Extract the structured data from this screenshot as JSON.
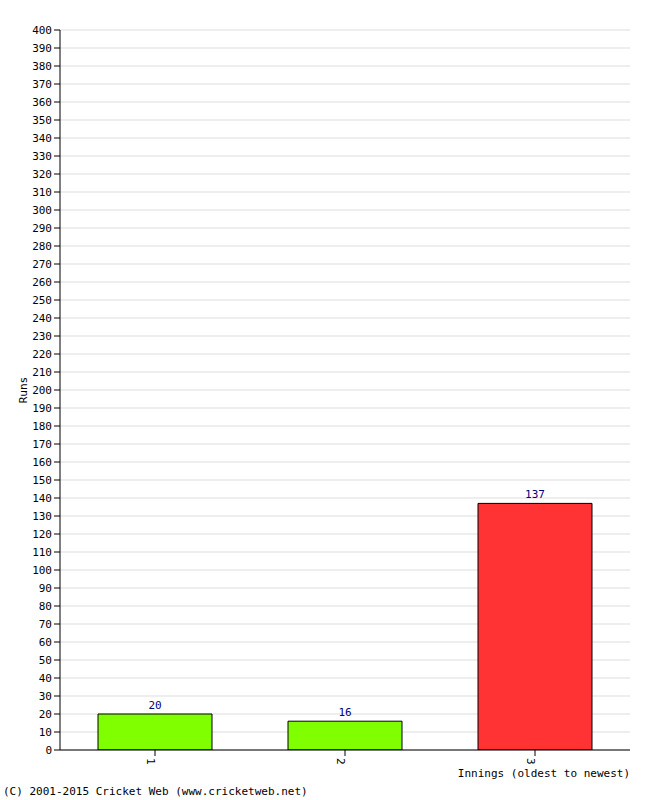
{
  "chart_data": {
    "type": "bar",
    "categories": [
      "1",
      "2",
      "3"
    ],
    "values": [
      20,
      16,
      137
    ],
    "colors": [
      "#80ff00",
      "#80ff00",
      "#ff3333"
    ],
    "y_label": "Runs",
    "x_label": "Innings (oldest to newest)",
    "annotation": "(C) 2001-2015 Cricket Web (www.cricketweb.net)",
    "ylim": [
      0,
      400
    ],
    "yticks": [
      0,
      10,
      20,
      30,
      40,
      50,
      60,
      70,
      80,
      90,
      100,
      110,
      120,
      130,
      140,
      150,
      160,
      170,
      180,
      190,
      200,
      210,
      220,
      230,
      240,
      250,
      260,
      270,
      280,
      290,
      300,
      310,
      320,
      330,
      340,
      350,
      360,
      370,
      380,
      390,
      400
    ],
    "grid": true,
    "data_labels": true
  }
}
